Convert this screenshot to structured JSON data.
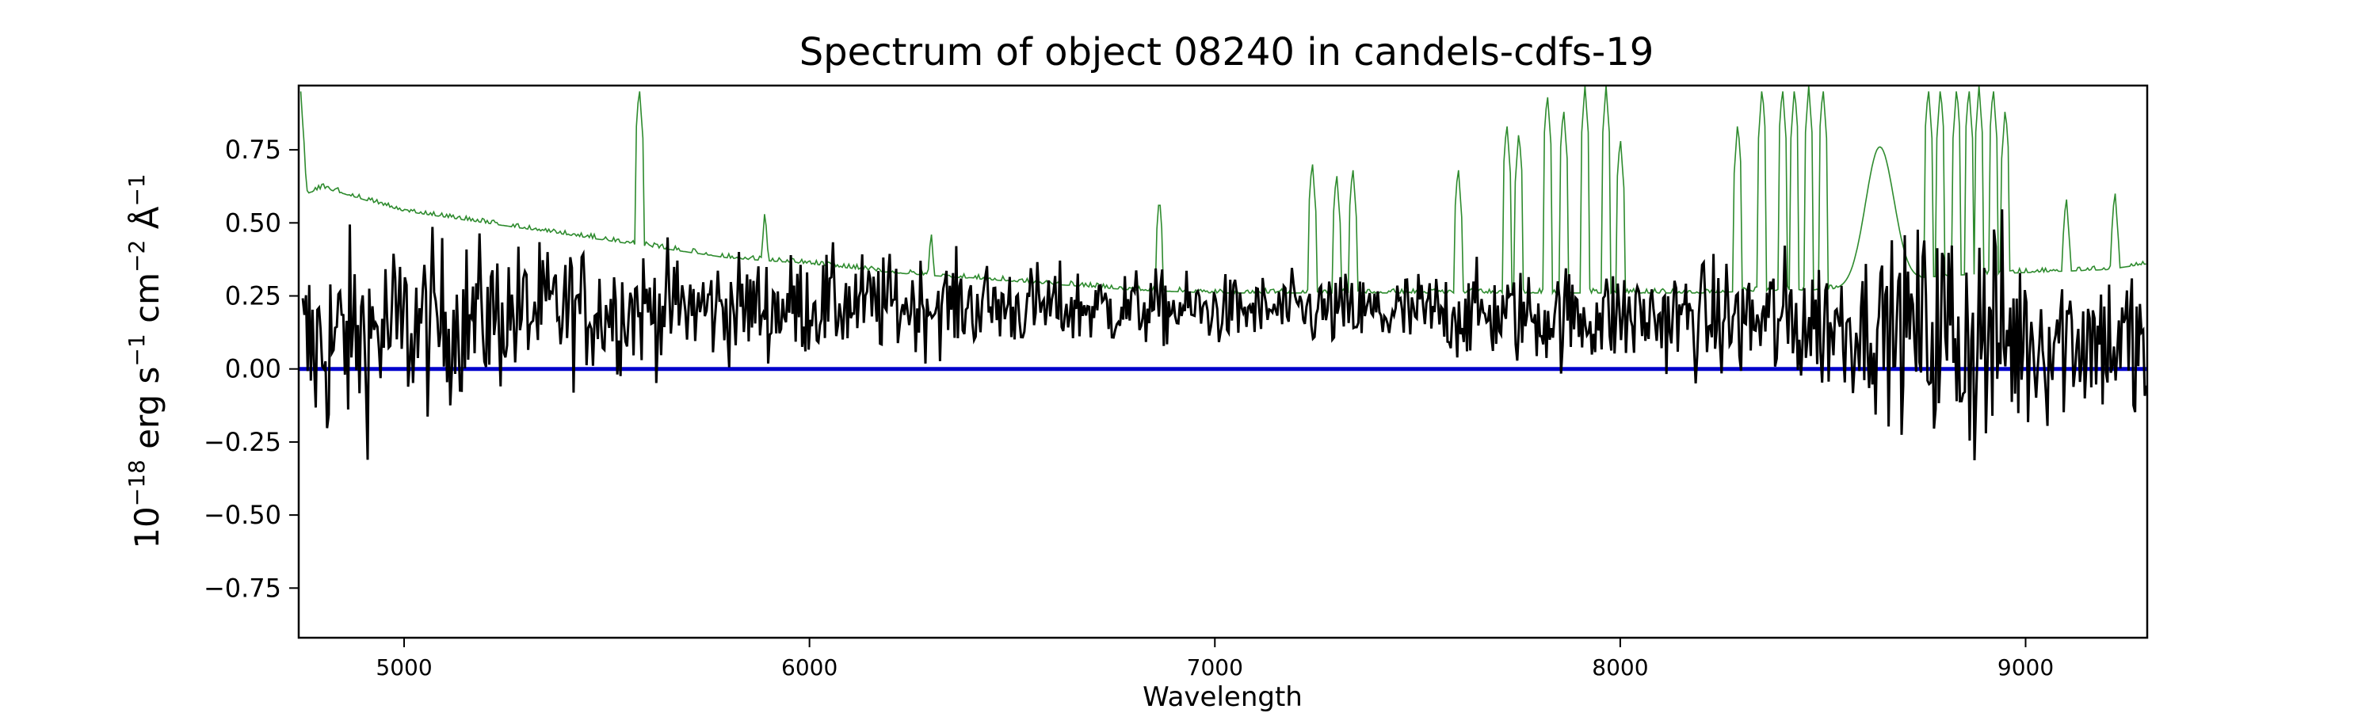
{
  "chart_data": {
    "type": "line",
    "title": "Spectrum of object 08240 in candels-cdfs-19",
    "xlabel": "Wavelength",
    "ylabel": {
      "prefix": "10",
      "exp": "−18",
      "unit1": " erg s",
      "exp1": "−1",
      "unit2": " cm",
      "exp2": "−2",
      "unit3": " Å",
      "exp3": "−1"
    },
    "xlim": [
      4740,
      9300
    ],
    "ylim": [
      -0.92,
      0.97
    ],
    "x_ticks": [
      5000,
      6000,
      7000,
      8000,
      9000
    ],
    "x_tick_labels": [
      "5000",
      "6000",
      "7000",
      "8000",
      "9000"
    ],
    "y_ticks": [
      0.75,
      0.5,
      0.25,
      0.0,
      -0.25,
      -0.5,
      -0.75
    ],
    "y_tick_labels": [
      "0.75",
      "0.50",
      "0.25",
      "0.00",
      "−0.25",
      "−0.50",
      "−0.75"
    ],
    "grid": false,
    "colors": {
      "flux": "#000000",
      "error": "#2e8b2e",
      "zero": "#0000cc"
    },
    "series": [
      {
        "key": "flux",
        "style": "noisy",
        "x": [
          4750,
          4800,
          4900,
          5000,
          5100,
          5200,
          5300,
          5400,
          5500,
          5600,
          5700,
          5800,
          5900,
          6000,
          6200,
          6400,
          6600,
          6800,
          7000,
          7200,
          7400,
          7600,
          7800,
          8000,
          8200,
          8400,
          8600,
          8700,
          8800,
          8900,
          9000,
          9100,
          9200,
          9300
        ],
        "y": [
          0.05,
          0.08,
          0.12,
          0.14,
          0.16,
          0.18,
          0.19,
          0.2,
          0.2,
          0.21,
          0.21,
          0.21,
          0.21,
          0.22,
          0.22,
          0.22,
          0.21,
          0.21,
          0.2,
          0.2,
          0.19,
          0.19,
          0.18,
          0.18,
          0.17,
          0.16,
          0.15,
          0.14,
          0.12,
          0.1,
          0.1,
          0.12,
          0.1,
          0.05
        ],
        "noise": [
          0.32,
          0.3,
          0.28,
          0.26,
          0.24,
          0.22,
          0.2,
          0.19,
          0.18,
          0.17,
          0.16,
          0.15,
          0.15,
          0.15,
          0.14,
          0.13,
          0.12,
          0.11,
          0.1,
          0.1,
          0.12,
          0.13,
          0.14,
          0.15,
          0.16,
          0.2,
          0.2,
          0.25,
          0.38,
          0.38,
          0.28,
          0.24,
          0.22,
          0.3
        ]
      },
      {
        "key": "error",
        "style": "skyline",
        "x": [
          4745,
          4760,
          4800,
          4900,
          5000,
          5100,
          5200,
          5300,
          5400,
          5500,
          5600,
          5700,
          5800,
          6000,
          6200,
          6400,
          6600,
          6800,
          7000,
          7200,
          7400,
          7600,
          7800,
          8000,
          8200,
          8400,
          8500,
          8600,
          8700,
          8800,
          9000,
          9200,
          9300
        ],
        "y": [
          0.95,
          0.6,
          0.62,
          0.58,
          0.54,
          0.52,
          0.5,
          0.48,
          0.46,
          0.44,
          0.42,
          0.4,
          0.38,
          0.36,
          0.33,
          0.31,
          0.29,
          0.27,
          0.26,
          0.26,
          0.26,
          0.26,
          0.26,
          0.26,
          0.26,
          0.27,
          0.27,
          0.28,
          0.3,
          0.32,
          0.33,
          0.34,
          0.36
        ],
        "lines": [
          {
            "x": 5580,
            "peak": 0.97
          },
          {
            "x": 5890,
            "peak": 0.55
          },
          {
            "x": 6300,
            "peak": 0.48
          },
          {
            "x": 6863,
            "peak": 0.6
          },
          {
            "x": 7240,
            "peak": 0.72
          },
          {
            "x": 7300,
            "peak": 0.68
          },
          {
            "x": 7340,
            "peak": 0.7
          },
          {
            "x": 7600,
            "peak": 0.7
          },
          {
            "x": 7720,
            "peak": 0.85
          },
          {
            "x": 7750,
            "peak": 0.82
          },
          {
            "x": 7820,
            "peak": 0.95
          },
          {
            "x": 7860,
            "peak": 0.9
          },
          {
            "x": 7913,
            "peak": 0.97
          },
          {
            "x": 7965,
            "peak": 0.97
          },
          {
            "x": 8000,
            "peak": 0.8
          },
          {
            "x": 8290,
            "peak": 0.85
          },
          {
            "x": 8350,
            "peak": 0.97
          },
          {
            "x": 8400,
            "peak": 0.97
          },
          {
            "x": 8430,
            "peak": 0.97
          },
          {
            "x": 8465,
            "peak": 0.97
          },
          {
            "x": 8500,
            "peak": 0.97
          },
          {
            "x": 8760,
            "peak": 0.97
          },
          {
            "x": 8790,
            "peak": 0.97
          },
          {
            "x": 8830,
            "peak": 0.97
          },
          {
            "x": 8860,
            "peak": 0.97
          },
          {
            "x": 8885,
            "peak": 0.97
          },
          {
            "x": 8920,
            "peak": 0.97
          },
          {
            "x": 8950,
            "peak": 0.9
          },
          {
            "x": 9100,
            "peak": 0.6
          },
          {
            "x": 9220,
            "peak": 0.62
          }
        ],
        "bump": {
          "x": 8640,
          "peak": 0.76
        }
      },
      {
        "key": "zero",
        "style": "line",
        "x": [
          4740,
          9300
        ],
        "y": [
          0,
          0
        ]
      }
    ]
  }
}
